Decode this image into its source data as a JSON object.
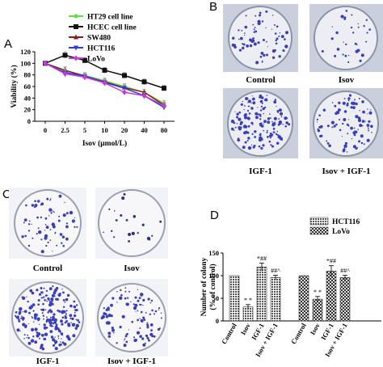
{
  "panels": {
    "A": "A",
    "B": "B",
    "C": "C",
    "D": "D"
  },
  "panel_b_captions": [
    "Control",
    "Isov",
    "IGF-1",
    "Isov + IGF-1"
  ],
  "panel_c_captions": [
    "Control",
    "Isov",
    "IGF-1",
    "Isov + IGF-1"
  ],
  "chart_data": [
    {
      "type": "line",
      "panel": "A",
      "xlabel": "Isov (μmol/L)",
      "ylabel": "Viability (%)",
      "categories": [
        "0",
        "2.5",
        "5",
        "10",
        "20",
        "40",
        "80"
      ],
      "ylim": [
        0,
        120
      ],
      "yticks": [
        0,
        20,
        40,
        60,
        80,
        100,
        120
      ],
      "legend_position": "top-right",
      "series": [
        {
          "name": "HT29 cell line",
          "color": "#66dd44",
          "marker": "circle",
          "values": [
            100,
            87,
            79,
            70,
            60,
            50,
            31
          ]
        },
        {
          "name": "HCEC cell line",
          "color": "#111111",
          "marker": "square",
          "values": [
            100,
            114,
            105,
            88,
            79,
            68,
            57
          ]
        },
        {
          "name": "SW480",
          "color": "#8b1a1a",
          "marker": "triangle",
          "values": [
            100,
            88,
            78,
            68,
            58,
            50,
            28
          ]
        },
        {
          "name": "HCT116",
          "color": "#2b3fd6",
          "marker": "triangle-down",
          "values": [
            100,
            84,
            78,
            67,
            57,
            44,
            24
          ]
        },
        {
          "name": "LoVo",
          "color": "#c63bd6",
          "marker": "diamond",
          "values": [
            100,
            82,
            76,
            66,
            50,
            44,
            27
          ]
        }
      ],
      "error": [
        0,
        6,
        5,
        5,
        5,
        5,
        5
      ]
    },
    {
      "type": "bar",
      "panel": "D",
      "ylabel": "Number of colony\n(% of control)",
      "ylim": [
        0,
        150
      ],
      "yticks": [
        0,
        50,
        100,
        150
      ],
      "legend_position": "top-right",
      "groups": [
        {
          "name": "HCT116",
          "categories": [
            "Control",
            "Isov",
            "IGF-1",
            "Isov + IGF-1"
          ],
          "values": [
            100,
            31,
            119,
            96
          ],
          "errors": [
            0,
            5,
            9,
            5
          ],
          "annotations": [
            "",
            "* *",
            "*##",
            "##^"
          ]
        },
        {
          "name": "LoVo",
          "categories": [
            "Control",
            "Isov",
            "IGF-1",
            "Isov + IGF-1"
          ],
          "values": [
            100,
            48,
            110,
            96
          ],
          "errors": [
            0,
            6,
            12,
            5
          ],
          "annotations": [
            "",
            "* *",
            "*##",
            "##^"
          ]
        }
      ]
    }
  ]
}
